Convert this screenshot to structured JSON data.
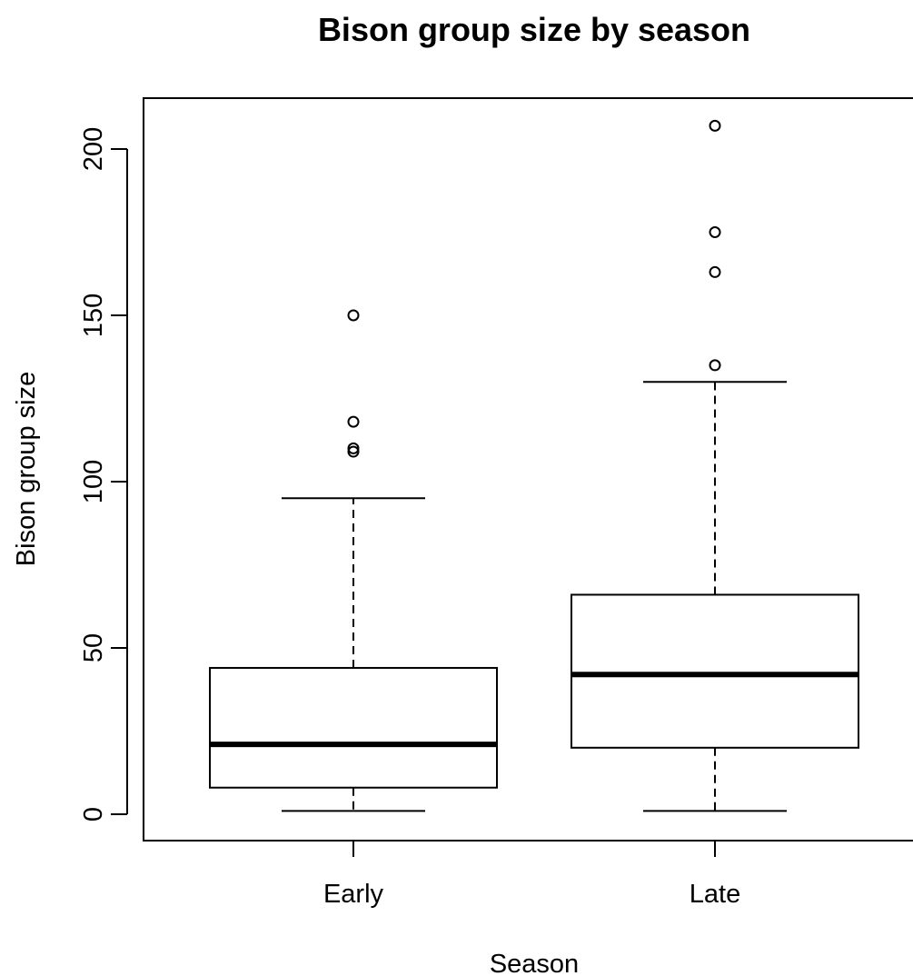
{
  "chart_data": {
    "type": "boxplot",
    "title": "Bison group size by season",
    "xlabel": "Season",
    "ylabel": "Bison group size",
    "categories": [
      "Early",
      "Late"
    ],
    "ylim": [
      -8,
      215
    ],
    "yticks": [
      0,
      50,
      100,
      150,
      200
    ],
    "y_tick_labels": [
      "0",
      "50",
      "100",
      "150",
      "200"
    ],
    "grid": false,
    "legend": "none",
    "boxes": [
      {
        "category": "Early",
        "whisker_low": 1,
        "q1": 8,
        "median": 21,
        "q3": 44,
        "whisker_high": 95,
        "outliers": [
          109,
          110,
          118,
          150
        ]
      },
      {
        "category": "Late",
        "whisker_low": 1,
        "q1": 20,
        "median": 42,
        "q3": 66,
        "whisker_high": 130,
        "outliers": [
          135,
          163,
          175,
          207
        ]
      }
    ],
    "colors": {
      "stroke": "#000000",
      "background": "#ffffff"
    }
  }
}
